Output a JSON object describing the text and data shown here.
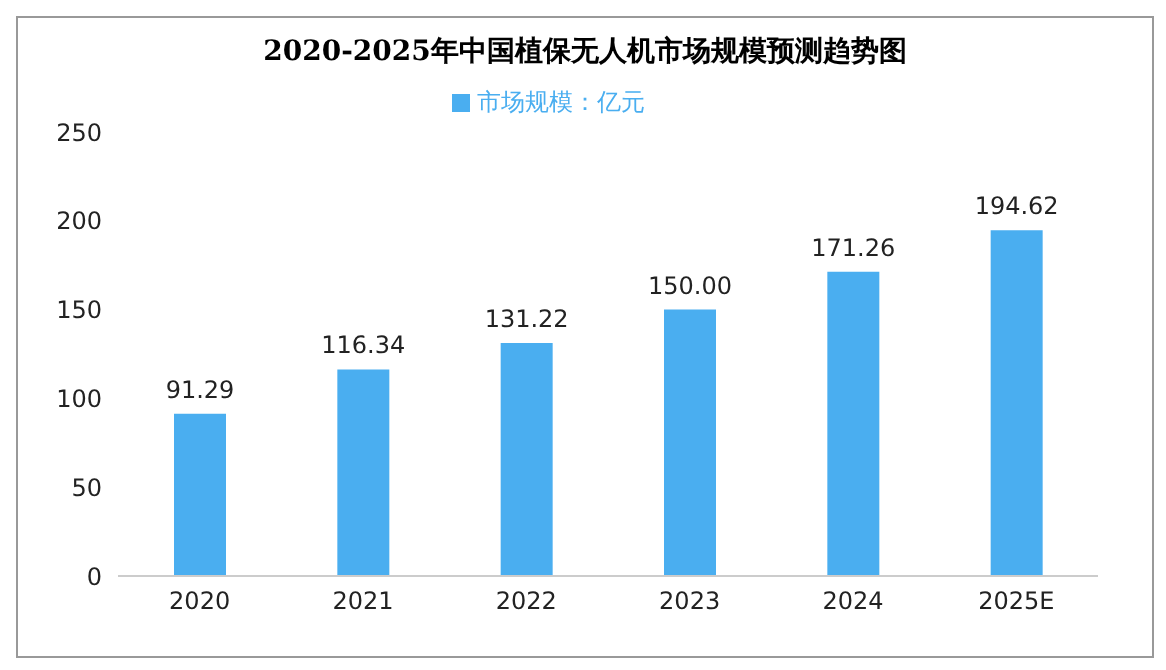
{
  "chart_data": {
    "type": "bar",
    "title": "2020-2025年中国植保无人机市场规模预测趋势图",
    "categories": [
      "2020",
      "2021",
      "2022",
      "2023",
      "2024",
      "2025E"
    ],
    "series": [
      {
        "name": "市场规模：亿元",
        "color": "#4aaef0",
        "values": [
          91.29,
          116.34,
          131.22,
          150.0,
          171.26,
          194.62
        ]
      }
    ],
    "value_labels": [
      "91.29",
      "116.34",
      "131.22",
      "150.00",
      "171.26",
      "194.62"
    ],
    "ylim": [
      0,
      250
    ],
    "yticks": [
      0,
      50,
      100,
      150,
      200,
      250
    ],
    "grid": false,
    "legend": "top"
  }
}
